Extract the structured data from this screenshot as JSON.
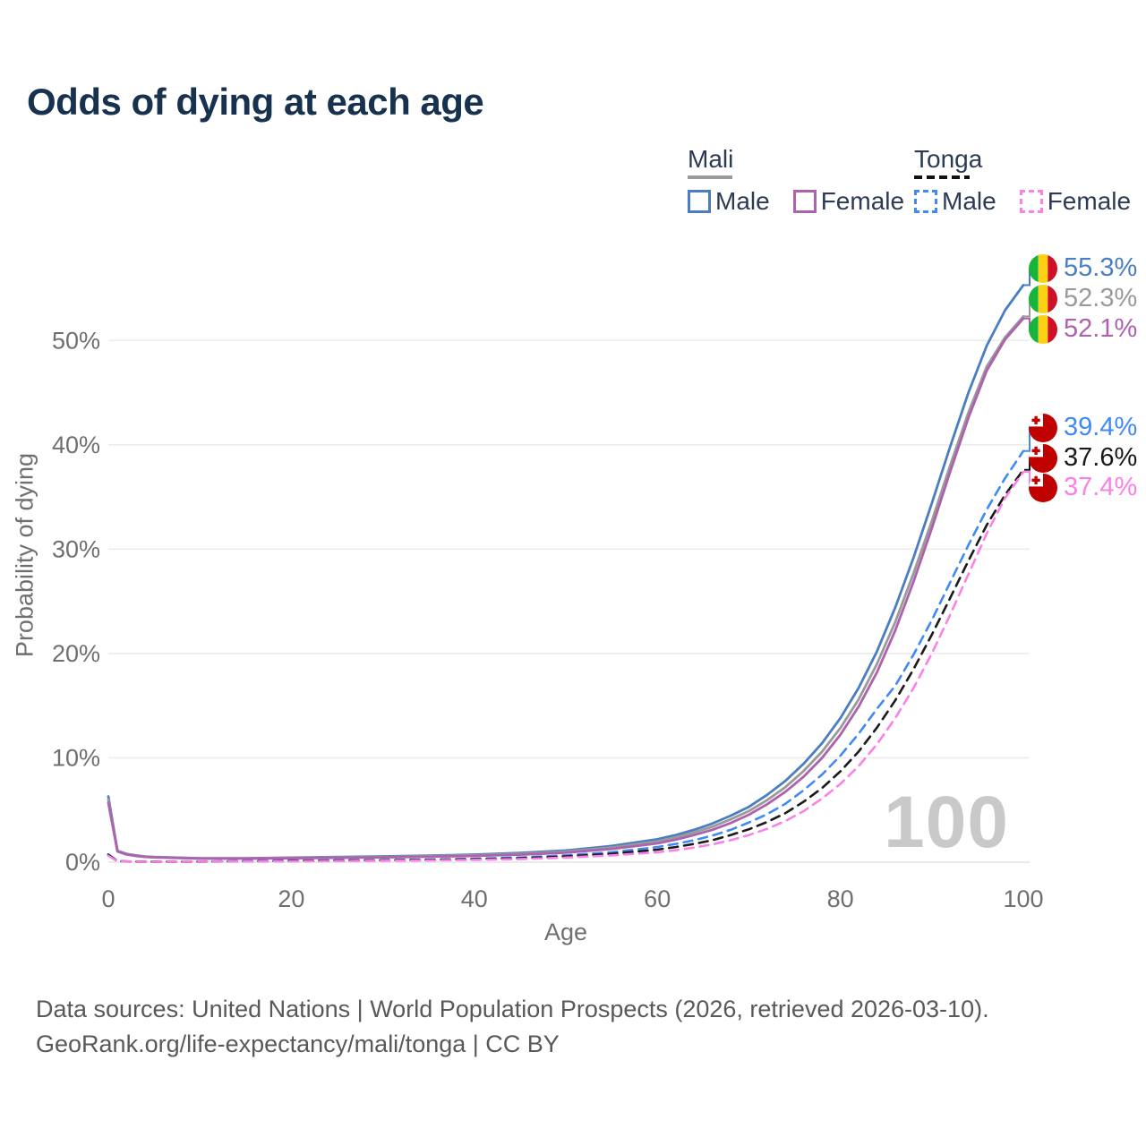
{
  "title": "Odds of dying at each age",
  "legend": {
    "mali": {
      "name": "Mali",
      "male": "Male",
      "female": "Female",
      "underline_color": "#9a9a9a"
    },
    "tonga": {
      "name": "Tonga",
      "male": "Male",
      "female": "Female",
      "underline_color": "#111111"
    }
  },
  "watermark": "100",
  "footer": {
    "line1": "Data sources: United Nations | World Population Prospects (2026, retrieved 2026-03-10).",
    "line2": "GeoRank.org/life-expectancy/mali/tonga | CC BY"
  },
  "flag_colors": {
    "mali_green": "#14B53A",
    "mali_yellow": "#FCD116",
    "mali_red": "#CE1126",
    "tonga_red": "#C10000",
    "tonga_white": "#FFFFFF"
  },
  "end_labels": [
    {
      "value": "55.3%",
      "pct": 55.3,
      "color": "#4a7ec0",
      "flag": "mali",
      "series": "mali-male"
    },
    {
      "value": "52.3%",
      "pct": 52.3,
      "color": "#9a9a9a",
      "flag": "mali",
      "series": "mali-both-sexes"
    },
    {
      "value": "52.1%",
      "pct": 52.1,
      "color": "#ad62ad",
      "flag": "mali",
      "series": "mali-female"
    },
    {
      "value": "39.4%",
      "pct": 39.4,
      "color": "#4189f4",
      "flag": "tonga",
      "series": "tonga-male"
    },
    {
      "value": "37.6%",
      "pct": 37.6,
      "color": "#1a1a1a",
      "flag": "tonga",
      "series": "tonga-both-sexes"
    },
    {
      "value": "37.4%",
      "pct": 37.4,
      "color": "#fb80e8",
      "flag": "tonga",
      "series": "tonga-female"
    }
  ],
  "chart_data": {
    "type": "line",
    "title": "Odds of dying at each age",
    "xlabel": "Age",
    "ylabel": "Probability of dying",
    "x_ticks": [
      0,
      20,
      40,
      60,
      80,
      100
    ],
    "y_ticks": [
      "0%",
      "10%",
      "20%",
      "30%",
      "40%",
      "50%"
    ],
    "xlim": [
      0,
      100
    ],
    "ylim_pct": [
      0,
      57
    ],
    "grid": "horizontal-only",
    "legend_position": "top-right",
    "ages": [
      0,
      1,
      2,
      3,
      4,
      5,
      10,
      15,
      20,
      25,
      30,
      35,
      40,
      45,
      50,
      55,
      60,
      62,
      64,
      66,
      68,
      70,
      72,
      74,
      76,
      78,
      80,
      82,
      84,
      86,
      88,
      90,
      92,
      94,
      96,
      98,
      100
    ],
    "series": [
      {
        "name": "Mali Male",
        "country": "Mali",
        "sex": "Male",
        "style": "solid",
        "color": "#4a7ec0",
        "end_value_pct": 55.3,
        "values": [
          6.3,
          1.1,
          0.8,
          0.65,
          0.55,
          0.5,
          0.38,
          0.38,
          0.44,
          0.5,
          0.56,
          0.63,
          0.73,
          0.88,
          1.12,
          1.55,
          2.2,
          2.6,
          3.1,
          3.7,
          4.45,
          5.3,
          6.45,
          7.8,
          9.45,
          11.4,
          13.8,
          16.7,
          20.2,
          24.4,
          29.2,
          34.4,
          39.8,
          45.0,
          49.5,
          52.9,
          55.3
        ]
      },
      {
        "name": "Mali Both sexes",
        "country": "Mali",
        "sex": "Both",
        "style": "solid",
        "color": "#9a9a9a",
        "end_value_pct": 52.3,
        "values": [
          6.0,
          1.06,
          0.77,
          0.62,
          0.53,
          0.48,
          0.36,
          0.36,
          0.41,
          0.46,
          0.51,
          0.58,
          0.66,
          0.8,
          1.02,
          1.4,
          2.0,
          2.38,
          2.85,
          3.4,
          4.1,
          4.9,
          5.95,
          7.2,
          8.75,
          10.6,
          12.85,
          15.6,
          19.0,
          23.0,
          27.7,
          32.7,
          38.0,
          43.1,
          47.5,
          50.3,
          52.3
        ]
      },
      {
        "name": "Mali Female",
        "country": "Mali",
        "sex": "Female",
        "style": "solid",
        "color": "#ad62ad",
        "end_value_pct": 52.1,
        "values": [
          5.7,
          1.02,
          0.74,
          0.6,
          0.51,
          0.46,
          0.34,
          0.34,
          0.38,
          0.42,
          0.46,
          0.52,
          0.6,
          0.72,
          0.92,
          1.27,
          1.8,
          2.15,
          2.6,
          3.1,
          3.75,
          4.55,
          5.55,
          6.75,
          8.2,
          10.0,
          12.2,
          14.9,
          18.2,
          22.2,
          26.9,
          32.0,
          37.4,
          42.6,
          47.1,
          50.1,
          52.1
        ]
      },
      {
        "name": "Tonga Male",
        "country": "Tonga",
        "sex": "Male",
        "style": "dashed",
        "color": "#4189f4",
        "end_value_pct": 39.4,
        "values": [
          0.75,
          0.1,
          0.07,
          0.06,
          0.06,
          0.05,
          0.06,
          0.1,
          0.15,
          0.18,
          0.21,
          0.26,
          0.33,
          0.45,
          0.65,
          0.95,
          1.45,
          1.75,
          2.1,
          2.55,
          3.1,
          3.8,
          4.6,
          5.6,
          6.9,
          8.4,
          10.2,
          12.3,
          14.7,
          16.9,
          19.9,
          23.2,
          26.8,
          30.4,
          33.8,
          36.8,
          39.4
        ]
      },
      {
        "name": "Tonga Both sexes",
        "country": "Tonga",
        "sex": "Both",
        "style": "dashed",
        "color": "#1a1a1a",
        "end_value_pct": 37.6,
        "values": [
          0.7,
          0.09,
          0.065,
          0.055,
          0.05,
          0.048,
          0.055,
          0.09,
          0.13,
          0.155,
          0.18,
          0.22,
          0.28,
          0.38,
          0.55,
          0.8,
          1.2,
          1.45,
          1.75,
          2.1,
          2.6,
          3.15,
          3.85,
          4.7,
          5.8,
          7.1,
          8.7,
          10.6,
          12.9,
          15.5,
          18.5,
          21.8,
          25.3,
          28.9,
          32.3,
          35.2,
          37.6
        ]
      },
      {
        "name": "Tonga Female",
        "country": "Tonga",
        "sex": "Female",
        "style": "dashed",
        "color": "#fb80e8",
        "end_value_pct": 37.4,
        "values": [
          0.62,
          0.08,
          0.06,
          0.05,
          0.046,
          0.042,
          0.05,
          0.07,
          0.09,
          0.11,
          0.14,
          0.17,
          0.22,
          0.3,
          0.44,
          0.65,
          0.95,
          1.15,
          1.4,
          1.7,
          2.1,
          2.6,
          3.2,
          3.95,
          4.9,
          6.1,
          7.5,
          9.2,
          11.3,
          13.8,
          16.7,
          20.0,
          23.7,
          27.6,
          31.5,
          34.9,
          37.4
        ]
      }
    ]
  }
}
